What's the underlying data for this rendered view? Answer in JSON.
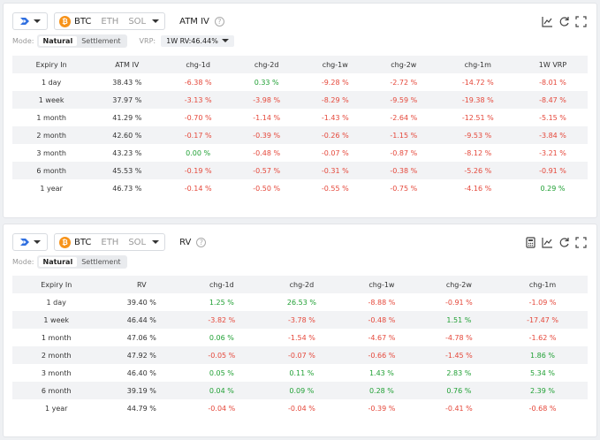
{
  "colors": {
    "negative": "#e5483b",
    "positive": "#21a035"
  },
  "atm_panel": {
    "assets": [
      "BTC",
      "ETH",
      "SOL"
    ],
    "coin_symbol": "₿",
    "title": "ATM IV",
    "mode_label": "Mode:",
    "mode_options": [
      "Natural",
      "Settlement"
    ],
    "vrp_label": "VRP:",
    "vrp_value": "1W RV:46.44%",
    "icons": [
      "line-chart-icon",
      "refresh-icon",
      "fullscreen-icon"
    ],
    "columns": [
      "Expiry In",
      "ATM IV",
      "chg-1d",
      "chg-2d",
      "chg-1w",
      "chg-2w",
      "chg-1m",
      "1W VRP"
    ],
    "rows": [
      [
        "1 day",
        "38.43 %",
        "-6.38 %",
        "0.33 %",
        "-9.28 %",
        "-2.72 %",
        "-14.72 %",
        "-8.01 %"
      ],
      [
        "1 week",
        "37.97 %",
        "-3.13 %",
        "-3.98 %",
        "-8.29 %",
        "-9.59 %",
        "-19.38 %",
        "-8.47 %"
      ],
      [
        "1 month",
        "41.29 %",
        "-0.70 %",
        "-1.14 %",
        "-1.43 %",
        "-2.64 %",
        "-12.51 %",
        "-5.15 %"
      ],
      [
        "2 month",
        "42.60 %",
        "-0.17 %",
        "-0.39 %",
        "-0.26 %",
        "-1.15 %",
        "-9.53 %",
        "-3.84 %"
      ],
      [
        "3 month",
        "43.23 %",
        "0.00 %",
        "-0.48 %",
        "-0.07 %",
        "-0.87 %",
        "-8.12 %",
        "-3.21 %"
      ],
      [
        "6 month",
        "45.53 %",
        "-0.19 %",
        "-0.57 %",
        "-0.31 %",
        "-0.38 %",
        "-5.26 %",
        "-0.91 %"
      ],
      [
        "1 year",
        "46.73 %",
        "-0.14 %",
        "-0.50 %",
        "-0.55 %",
        "-0.75 %",
        "-4.16 %",
        "0.29 %"
      ]
    ]
  },
  "rv_panel": {
    "assets": [
      "BTC",
      "ETH",
      "SOL"
    ],
    "coin_symbol": "₿",
    "title": "RV",
    "mode_label": "Mode:",
    "mode_options": [
      "Natural",
      "Settlement"
    ],
    "icons": [
      "calculator-icon",
      "line-chart-icon",
      "refresh-icon",
      "fullscreen-icon"
    ],
    "columns": [
      "Expiry In",
      "RV",
      "chg-1d",
      "chg-2d",
      "chg-1w",
      "chg-2w",
      "chg-1m"
    ],
    "rows": [
      [
        "1 day",
        "39.40 %",
        "1.25 %",
        "26.53 %",
        "-8.88 %",
        "-0.91 %",
        "-1.09 %"
      ],
      [
        "1 week",
        "46.44 %",
        "-3.82 %",
        "-3.78 %",
        "-0.48 %",
        "1.51 %",
        "-17.47 %"
      ],
      [
        "1 month",
        "47.06 %",
        "0.06 %",
        "-1.54 %",
        "-4.67 %",
        "-4.78 %",
        "-1.62 %"
      ],
      [
        "2 month",
        "47.92 %",
        "-0.05 %",
        "-0.07 %",
        "-0.66 %",
        "-1.45 %",
        "1.86 %"
      ],
      [
        "3 month",
        "46.40 %",
        "0.05 %",
        "0.11 %",
        "1.43 %",
        "2.83 %",
        "5.34 %"
      ],
      [
        "6 month",
        "39.19 %",
        "0.04 %",
        "0.09 %",
        "0.28 %",
        "0.76 %",
        "2.39 %"
      ],
      [
        "1 year",
        "44.79 %",
        "-0.04 %",
        "-0.04 %",
        "-0.39 %",
        "-0.41 %",
        "-0.68 %"
      ]
    ]
  }
}
